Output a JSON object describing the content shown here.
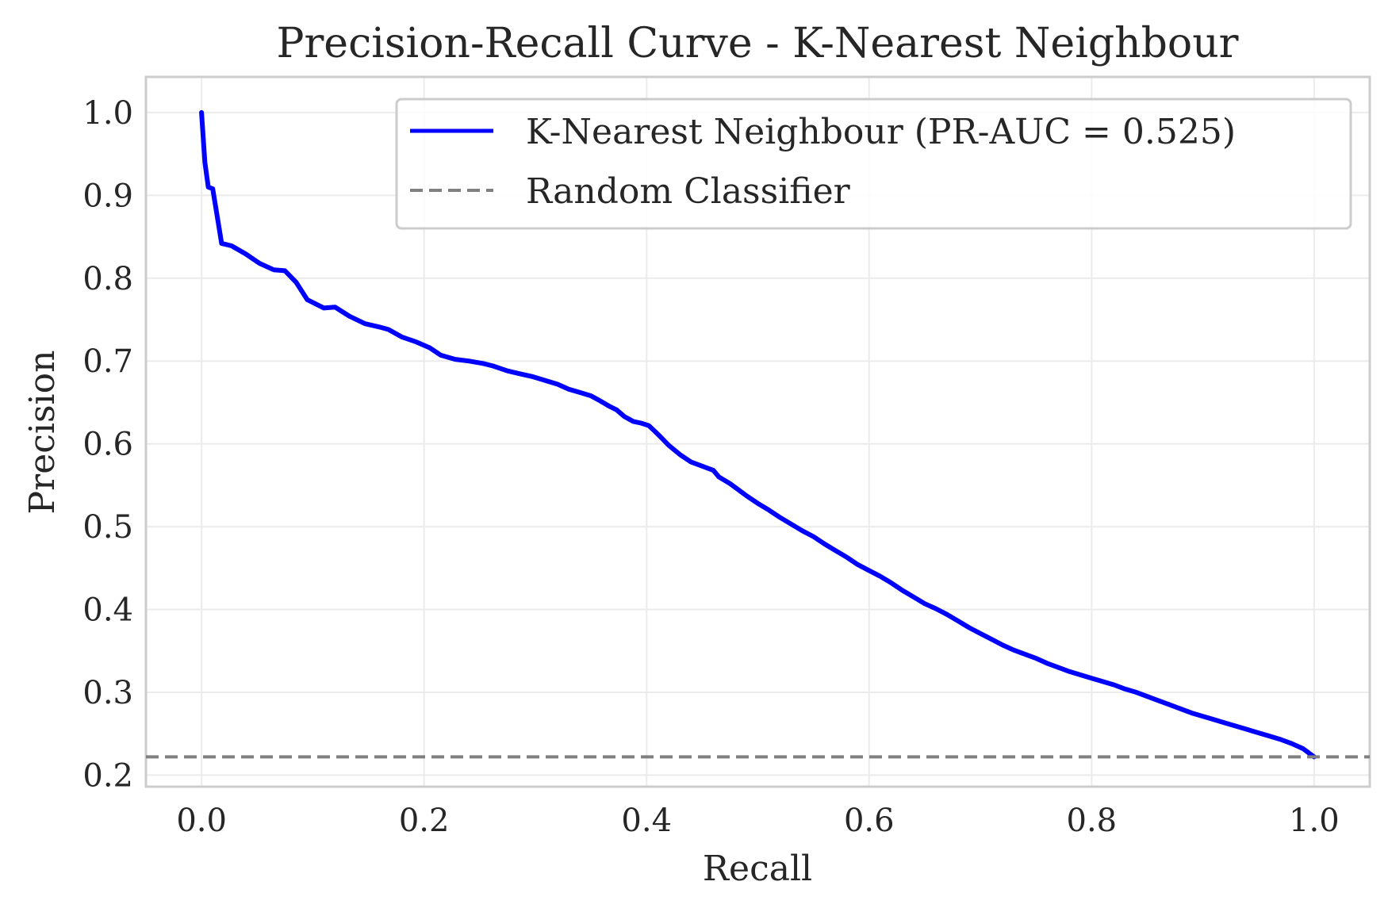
{
  "chart_data": {
    "type": "line",
    "title": "Precision-Recall Curve - K-Nearest Neighbour",
    "xlabel": "Recall",
    "ylabel": "Precision",
    "xlim": [
      -0.05,
      1.05
    ],
    "ylim": [
      0.186,
      1.043
    ],
    "xticks": [
      "0.0",
      "0.2",
      "0.4",
      "0.6",
      "0.8",
      "1.0"
    ],
    "yticks": [
      "0.2",
      "0.3",
      "0.4",
      "0.5",
      "0.6",
      "0.7",
      "0.8",
      "0.9",
      "1.0"
    ],
    "grid": true,
    "legend_position": "top-right",
    "colors": {
      "curve": "#0000ff",
      "baseline": "#808080",
      "grid": "#ebebeb",
      "frame": "#cccccc"
    },
    "series": [
      {
        "name": "K-Nearest Neighbour (PR-AUC = 0.525)",
        "style": "solid",
        "x": [
          0.0,
          0.003,
          0.006,
          0.01,
          0.014,
          0.018,
          0.027,
          0.04,
          0.052,
          0.065,
          0.075,
          0.085,
          0.095,
          0.11,
          0.12,
          0.133,
          0.147,
          0.16,
          0.168,
          0.18,
          0.193,
          0.205,
          0.215,
          0.228,
          0.24,
          0.253,
          0.262,
          0.275,
          0.288,
          0.298,
          0.31,
          0.32,
          0.33,
          0.34,
          0.35,
          0.358,
          0.367,
          0.373,
          0.38,
          0.388,
          0.395,
          0.402,
          0.406,
          0.412,
          0.42,
          0.43,
          0.44,
          0.45,
          0.46,
          0.465,
          0.475,
          0.482,
          0.49,
          0.5,
          0.51,
          0.52,
          0.53,
          0.54,
          0.55,
          0.56,
          0.57,
          0.58,
          0.59,
          0.6,
          0.61,
          0.62,
          0.63,
          0.64,
          0.65,
          0.66,
          0.67,
          0.68,
          0.69,
          0.7,
          0.71,
          0.72,
          0.73,
          0.74,
          0.75,
          0.76,
          0.77,
          0.78,
          0.79,
          0.8,
          0.81,
          0.82,
          0.83,
          0.84,
          0.85,
          0.86,
          0.87,
          0.88,
          0.89,
          0.9,
          0.91,
          0.92,
          0.93,
          0.94,
          0.95,
          0.96,
          0.97,
          0.98,
          0.99,
          1.0
        ],
        "y": [
          1.0,
          0.94,
          0.91,
          0.908,
          0.875,
          0.842,
          0.839,
          0.829,
          0.818,
          0.81,
          0.809,
          0.795,
          0.774,
          0.764,
          0.765,
          0.754,
          0.745,
          0.741,
          0.738,
          0.729,
          0.723,
          0.716,
          0.707,
          0.702,
          0.7,
          0.697,
          0.694,
          0.688,
          0.684,
          0.681,
          0.676,
          0.672,
          0.666,
          0.662,
          0.658,
          0.652,
          0.645,
          0.641,
          0.633,
          0.627,
          0.625,
          0.622,
          0.617,
          0.609,
          0.598,
          0.587,
          0.578,
          0.573,
          0.568,
          0.56,
          0.552,
          0.545,
          0.537,
          0.528,
          0.52,
          0.511,
          0.503,
          0.495,
          0.488,
          0.479,
          0.471,
          0.463,
          0.454,
          0.447,
          0.44,
          0.432,
          0.423,
          0.415,
          0.407,
          0.401,
          0.394,
          0.386,
          0.378,
          0.371,
          0.364,
          0.357,
          0.351,
          0.346,
          0.341,
          0.335,
          0.33,
          0.325,
          0.321,
          0.317,
          0.313,
          0.309,
          0.304,
          0.3,
          0.295,
          0.29,
          0.285,
          0.28,
          0.275,
          0.271,
          0.267,
          0.263,
          0.259,
          0.255,
          0.251,
          0.247,
          0.243,
          0.238,
          0.232,
          0.222
        ]
      },
      {
        "name": "Random Classifier",
        "style": "dashed",
        "x": [
          -0.05,
          1.05
        ],
        "y": [
          0.222,
          0.222
        ]
      }
    ]
  }
}
